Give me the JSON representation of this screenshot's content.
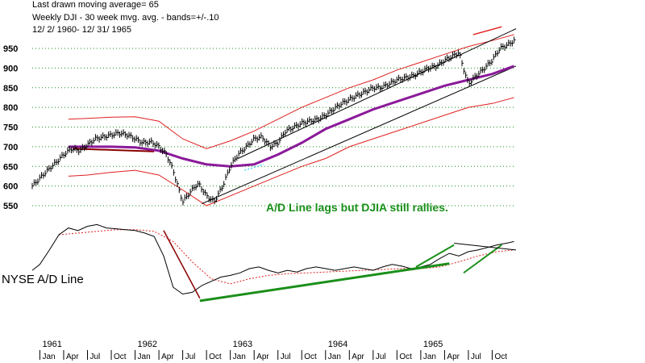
{
  "header": {
    "line1": "Last drawn moving average= 65",
    "line2": "Weekly DJI  - 30 week mvg. avg. - bands=+/-.10",
    "line3": "12/ 2/ 1960- 12/ 31/ 1965"
  },
  "annotation": "A/D Line lags but DJIA still rallies.",
  "ad_label": "NYSE A/D Line",
  "colors": {
    "price": "#000000",
    "moving_average": "#8b1a9a",
    "bands": "#e02020",
    "grid": "#1a8f1a",
    "trendline_green": "#1a8f1a",
    "trendline_darkred": "#8b0000",
    "ad_ma": "#e02020",
    "annotation": "#1a8f1a",
    "cyan_dash": "#00c8ff"
  },
  "chart_data": [
    {
      "type": "line",
      "title": "",
      "ylabel": "",
      "xlabel": "",
      "ylim": [
        520,
        990
      ],
      "xlim": [
        1960.92,
        1966.0
      ],
      "yticks": [
        550,
        600,
        650,
        700,
        750,
        800,
        850,
        900,
        950
      ],
      "grid": true,
      "series": [
        {
          "kind": "price",
          "x": [
            1960.92,
            1961.0,
            1961.08,
            1961.17,
            1961.25,
            1961.33,
            1961.42,
            1961.5,
            1961.58,
            1961.67,
            1961.75,
            1961.83,
            1961.92,
            1962.0,
            1962.08,
            1962.17,
            1962.25,
            1962.33,
            1962.4,
            1962.46,
            1962.5,
            1962.58,
            1962.63,
            1962.67,
            1962.75,
            1962.83,
            1962.92,
            1963.0,
            1963.08,
            1963.17,
            1963.25,
            1963.33,
            1963.42,
            1963.5,
            1963.58,
            1963.67,
            1963.75,
            1963.83,
            1963.92,
            1964.0,
            1964.08,
            1964.17,
            1964.25,
            1964.33,
            1964.42,
            1964.5,
            1964.58,
            1964.67,
            1964.75,
            1964.83,
            1964.92,
            1965.0,
            1965.08,
            1965.17,
            1965.25,
            1965.33,
            1965.4,
            1965.46,
            1965.5,
            1965.58,
            1965.67,
            1965.75,
            1965.83,
            1965.92,
            1965.98
          ],
          "values": [
            600,
            620,
            640,
            660,
            680,
            695,
            690,
            705,
            720,
            725,
            730,
            735,
            730,
            720,
            710,
            712,
            700,
            680,
            640,
            590,
            560,
            585,
            600,
            605,
            575,
            560,
            600,
            650,
            680,
            700,
            720,
            725,
            700,
            710,
            740,
            750,
            760,
            765,
            770,
            780,
            795,
            810,
            820,
            830,
            840,
            850,
            850,
            860,
            870,
            875,
            880,
            890,
            900,
            905,
            920,
            930,
            940,
            890,
            860,
            880,
            900,
            920,
            950,
            960,
            970
          ]
        },
        {
          "kind": "moving_average",
          "x": [
            1961.3,
            1961.5,
            1961.75,
            1962.0,
            1962.25,
            1962.5,
            1962.75,
            1963.0,
            1963.25,
            1963.5,
            1963.75,
            1964.0,
            1964.25,
            1964.5,
            1964.75,
            1965.0,
            1965.25,
            1965.5,
            1965.75,
            1965.98
          ],
          "values": [
            700,
            700,
            700,
            698,
            690,
            670,
            655,
            650,
            655,
            680,
            710,
            745,
            770,
            795,
            815,
            835,
            855,
            870,
            885,
            905
          ]
        },
        {
          "kind": "upper_band",
          "x": [
            1961.3,
            1961.5,
            1961.75,
            1962.0,
            1962.25,
            1962.5,
            1962.75,
            1963.0,
            1963.25,
            1963.5,
            1963.75,
            1964.0,
            1964.25,
            1964.5,
            1964.75,
            1965.0,
            1965.25,
            1965.5,
            1965.75,
            1965.98
          ],
          "values": [
            770,
            772,
            775,
            776,
            765,
            720,
            695,
            715,
            740,
            770,
            800,
            825,
            850,
            870,
            895,
            915,
            935,
            955,
            970,
            985
          ]
        },
        {
          "kind": "lower_band",
          "x": [
            1961.3,
            1961.5,
            1961.75,
            1962.0,
            1962.25,
            1962.5,
            1962.75,
            1963.0,
            1963.25,
            1963.5,
            1963.75,
            1964.0,
            1964.25,
            1964.5,
            1964.75,
            1965.0,
            1965.25,
            1965.5,
            1965.75,
            1965.98
          ],
          "values": [
            625,
            628,
            635,
            640,
            628,
            590,
            550,
            575,
            600,
            625,
            650,
            670,
            700,
            720,
            740,
            760,
            780,
            800,
            810,
            825
          ]
        }
      ],
      "trendlines": [
        {
          "color": "darkred",
          "x": [
            1961.35,
            1962.2
          ],
          "values": [
            695,
            688
          ]
        },
        {
          "color": "black",
          "x": [
            1962.7,
            1966.0
          ],
          "values": [
            555,
            905
          ]
        },
        {
          "color": "black",
          "x": [
            1963.08,
            1966.0
          ],
          "values": [
            670,
            1000
          ]
        }
      ]
    },
    {
      "type": "line",
      "title": "NYSE A/D Line",
      "xlim": [
        1960.92,
        1966.0
      ],
      "ylim": [
        0,
        100
      ],
      "series": [
        {
          "kind": "ad_line",
          "x": [
            1960.92,
            1961.0,
            1961.1,
            1961.2,
            1961.3,
            1961.4,
            1961.5,
            1961.6,
            1961.7,
            1961.8,
            1961.9,
            1962.0,
            1962.1,
            1962.2,
            1962.3,
            1962.4,
            1962.5,
            1962.6,
            1962.7,
            1962.8,
            1962.9,
            1963.0,
            1963.1,
            1963.2,
            1963.3,
            1963.4,
            1963.5,
            1963.6,
            1963.7,
            1963.8,
            1963.9,
            1964.0,
            1964.1,
            1964.2,
            1964.3,
            1964.4,
            1964.5,
            1964.6,
            1964.7,
            1964.8,
            1964.9,
            1965.0,
            1965.1,
            1965.2,
            1965.3,
            1965.4,
            1965.5,
            1965.6,
            1965.7,
            1965.8,
            1965.9,
            1965.98
          ],
          "values": [
            38,
            45,
            62,
            80,
            88,
            85,
            90,
            92,
            88,
            87,
            86,
            85,
            82,
            78,
            55,
            18,
            10,
            12,
            20,
            25,
            30,
            32,
            35,
            40,
            42,
            38,
            35,
            38,
            36,
            40,
            42,
            40,
            38,
            40,
            42,
            40,
            38,
            42,
            45,
            43,
            40,
            42,
            45,
            52,
            58,
            55,
            60,
            62,
            65,
            68,
            70,
            72
          ]
        },
        {
          "kind": "ad_moving_average",
          "x": [
            1961.2,
            1961.4,
            1961.6,
            1961.8,
            1962.0,
            1962.2,
            1962.4,
            1962.6,
            1962.8,
            1963.0,
            1963.2,
            1963.4,
            1963.6,
            1963.8,
            1964.0,
            1964.2,
            1964.4,
            1964.6,
            1964.8,
            1965.0,
            1965.2,
            1965.4,
            1965.6,
            1965.8,
            1965.98
          ],
          "values": [
            80,
            82,
            84,
            86,
            86,
            84,
            72,
            48,
            28,
            22,
            28,
            32,
            34,
            35,
            36,
            37,
            38,
            39,
            40,
            40,
            42,
            48,
            55,
            60,
            62
          ]
        }
      ]
    }
  ],
  "x_axis": {
    "years": [
      "1961",
      "1962",
      "1963",
      "1964",
      "1965"
    ],
    "months": [
      "Jan",
      "Apr",
      "Jul",
      "Oct",
      "Jan",
      "Apr",
      "Jul",
      "Oct",
      "Jan",
      "Apr",
      "Jul",
      "Oct",
      "Jan",
      "Apr",
      "Jul",
      "Oct",
      "Jan",
      "Apr",
      "Jul",
      "Oct"
    ]
  }
}
